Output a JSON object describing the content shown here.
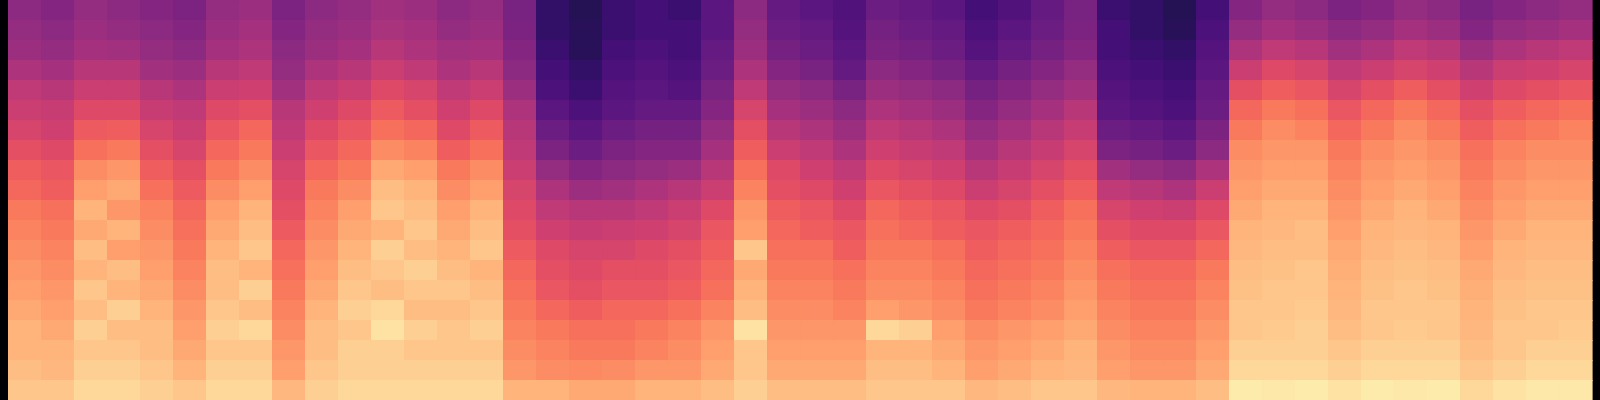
{
  "chart_data": {
    "type": "heatmap",
    "color": "magma",
    "zlim": [
      0,
      100
    ],
    "tick_labels": false,
    "cells": [
      [
        40,
        38,
        42,
        40,
        38,
        36,
        42,
        44,
        36,
        40,
        42,
        45,
        44,
        40,
        42,
        35,
        18,
        15,
        20,
        22,
        20,
        28,
        40,
        30,
        28,
        25,
        32,
        30,
        28,
        22,
        25,
        30,
        35,
        20,
        18,
        15,
        22,
        38,
        42,
        40,
        36,
        38,
        42,
        40,
        35,
        38,
        40,
        42
      ],
      [
        42,
        40,
        44,
        42,
        40,
        38,
        44,
        46,
        38,
        42,
        44,
        47,
        46,
        42,
        44,
        36,
        18,
        16,
        20,
        22,
        22,
        28,
        42,
        32,
        30,
        26,
        34,
        32,
        30,
        24,
        28,
        32,
        36,
        22,
        18,
        16,
        24,
        42,
        46,
        44,
        40,
        42,
        46,
        44,
        38,
        42,
        44,
        46
      ],
      [
        44,
        42,
        46,
        45,
        42,
        40,
        46,
        48,
        40,
        44,
        46,
        50,
        48,
        45,
        46,
        38,
        20,
        16,
        22,
        24,
        22,
        30,
        44,
        34,
        32,
        28,
        36,
        34,
        32,
        26,
        30,
        34,
        38,
        22,
        20,
        18,
        26,
        48,
        52,
        50,
        45,
        48,
        52,
        50,
        44,
        48,
        50,
        52
      ],
      [
        48,
        46,
        50,
        50,
        45,
        44,
        50,
        52,
        42,
        48,
        50,
        55,
        52,
        48,
        50,
        40,
        22,
        18,
        24,
        26,
        24,
        32,
        48,
        38,
        35,
        30,
        40,
        38,
        35,
        30,
        34,
        38,
        42,
        24,
        22,
        20,
        28,
        55,
        60,
        58,
        52,
        55,
        58,
        56,
        50,
        55,
        56,
        58
      ],
      [
        52,
        50,
        55,
        55,
        50,
        48,
        55,
        56,
        45,
        52,
        55,
        60,
        58,
        52,
        55,
        44,
        24,
        20,
        26,
        28,
        26,
        35,
        52,
        42,
        40,
        35,
        44,
        42,
        40,
        34,
        38,
        42,
        45,
        26,
        24,
        22,
        30,
        62,
        66,
        64,
        58,
        62,
        66,
        62,
        56,
        60,
        62,
        64
      ],
      [
        55,
        54,
        60,
        60,
        54,
        52,
        60,
        62,
        50,
        56,
        60,
        65,
        62,
        56,
        60,
        48,
        28,
        24,
        28,
        30,
        30,
        38,
        58,
        46,
        44,
        40,
        48,
        46,
        44,
        38,
        42,
        46,
        50,
        28,
        26,
        24,
        32,
        68,
        72,
        70,
        64,
        68,
        72,
        68,
        62,
        66,
        68,
        70
      ],
      [
        58,
        56,
        65,
        66,
        58,
        55,
        64,
        68,
        52,
        60,
        64,
        70,
        68,
        60,
        65,
        50,
        32,
        28,
        32,
        34,
        34,
        42,
        62,
        50,
        48,
        44,
        52,
        50,
        48,
        42,
        46,
        50,
        54,
        32,
        30,
        28,
        36,
        72,
        76,
        74,
        68,
        72,
        76,
        72,
        66,
        70,
        72,
        74
      ],
      [
        62,
        60,
        70,
        72,
        62,
        58,
        68,
        72,
        55,
        64,
        68,
        76,
        74,
        66,
        70,
        52,
        36,
        32,
        36,
        38,
        38,
        46,
        66,
        55,
        52,
        48,
        56,
        54,
        52,
        46,
        50,
        54,
        58,
        36,
        34,
        32,
        40,
        76,
        78,
        78,
        72,
        76,
        78,
        76,
        70,
        74,
        76,
        76
      ],
      [
        66,
        64,
        76,
        78,
        66,
        62,
        72,
        76,
        58,
        68,
        72,
        82,
        80,
        72,
        76,
        55,
        42,
        38,
        40,
        42,
        44,
        50,
        70,
        60,
        56,
        52,
        60,
        58,
        56,
        50,
        54,
        58,
        62,
        45,
        42,
        40,
        48,
        78,
        80,
        80,
        74,
        78,
        80,
        78,
        72,
        76,
        78,
        78
      ],
      [
        68,
        66,
        80,
        82,
        70,
        65,
        76,
        80,
        60,
        72,
        76,
        86,
        84,
        76,
        80,
        58,
        48,
        44,
        45,
        48,
        50,
        55,
        74,
        62,
        60,
        56,
        64,
        62,
        60,
        55,
        58,
        62,
        66,
        52,
        50,
        48,
        55,
        80,
        82,
        82,
        76,
        80,
        82,
        80,
        74,
        78,
        80,
        80
      ],
      [
        72,
        70,
        84,
        78,
        74,
        68,
        80,
        84,
        62,
        74,
        80,
        88,
        86,
        80,
        84,
        60,
        52,
        50,
        50,
        52,
        55,
        60,
        78,
        66,
        64,
        60,
        68,
        66,
        64,
        60,
        62,
        66,
        70,
        58,
        56,
        55,
        60,
        82,
        84,
        84,
        78,
        82,
        84,
        82,
        76,
        80,
        82,
        82
      ],
      [
        74,
        72,
        82,
        84,
        76,
        70,
        82,
        86,
        65,
        76,
        82,
        84,
        88,
        82,
        86,
        62,
        56,
        54,
        55,
        56,
        58,
        64,
        80,
        68,
        66,
        64,
        70,
        68,
        66,
        64,
        66,
        68,
        72,
        62,
        60,
        60,
        64,
        84,
        85,
        86,
        80,
        84,
        85,
        84,
        78,
        82,
        84,
        84
      ],
      [
        76,
        74,
        86,
        80,
        78,
        72,
        84,
        88,
        68,
        78,
        84,
        90,
        86,
        84,
        88,
        65,
        60,
        58,
        58,
        60,
        62,
        66,
        88,
        70,
        70,
        66,
        72,
        72,
        70,
        66,
        68,
        70,
        74,
        66,
        64,
        64,
        68,
        85,
        86,
        86,
        82,
        85,
        86,
        85,
        80,
        84,
        85,
        85
      ],
      [
        78,
        76,
        84,
        86,
        80,
        74,
        86,
        84,
        70,
        80,
        86,
        88,
        90,
        86,
        84,
        68,
        62,
        60,
        62,
        62,
        64,
        68,
        82,
        72,
        72,
        70,
        74,
        74,
        72,
        68,
        70,
        72,
        76,
        70,
        68,
        68,
        72,
        86,
        87,
        88,
        83,
        86,
        87,
        86,
        82,
        85,
        86,
        86
      ],
      [
        80,
        78,
        88,
        84,
        82,
        76,
        86,
        90,
        72,
        82,
        88,
        86,
        88,
        88,
        86,
        70,
        64,
        62,
        64,
        64,
        66,
        70,
        84,
        74,
        74,
        72,
        76,
        76,
        74,
        70,
        72,
        74,
        78,
        72,
        70,
        70,
        74,
        87,
        88,
        88,
        84,
        87,
        88,
        87,
        83,
        86,
        87,
        87
      ],
      [
        82,
        80,
        86,
        90,
        84,
        78,
        88,
        86,
        74,
        84,
        90,
        92,
        86,
        86,
        88,
        72,
        68,
        66,
        68,
        68,
        70,
        74,
        86,
        76,
        76,
        74,
        80,
        78,
        76,
        72,
        74,
        76,
        80,
        74,
        72,
        72,
        76,
        88,
        88,
        89,
        85,
        88,
        88,
        88,
        84,
        87,
        88,
        88
      ],
      [
        84,
        82,
        90,
        86,
        86,
        80,
        90,
        92,
        76,
        86,
        88,
        94,
        90,
        88,
        90,
        74,
        72,
        70,
        70,
        72,
        74,
        78,
        94,
        78,
        78,
        78,
        92,
        90,
        80,
        76,
        78,
        80,
        82,
        76,
        74,
        74,
        78,
        88,
        89,
        90,
        86,
        88,
        89,
        88,
        85,
        88,
        88,
        89
      ],
      [
        84,
        84,
        88,
        88,
        86,
        82,
        88,
        88,
        78,
        86,
        90,
        90,
        88,
        88,
        88,
        76,
        74,
        72,
        72,
        74,
        76,
        80,
        88,
        80,
        80,
        80,
        84,
        84,
        82,
        78,
        80,
        82,
        84,
        78,
        76,
        76,
        80,
        90,
        90,
        90,
        88,
        90,
        90,
        90,
        86,
        88,
        90,
        90
      ],
      [
        86,
        85,
        90,
        90,
        88,
        84,
        90,
        90,
        80,
        88,
        90,
        90,
        90,
        90,
        90,
        78,
        76,
        75,
        76,
        78,
        78,
        82,
        88,
        82,
        82,
        82,
        86,
        86,
        84,
        80,
        82,
        84,
        85,
        80,
        78,
        78,
        82,
        92,
        92,
        92,
        90,
        92,
        92,
        92,
        88,
        90,
        92,
        92
      ],
      [
        88,
        88,
        92,
        92,
        90,
        88,
        92,
        92,
        85,
        90,
        92,
        92,
        92,
        92,
        92,
        84,
        84,
        82,
        82,
        84,
        84,
        86,
        90,
        86,
        86,
        86,
        88,
        88,
        88,
        85,
        86,
        88,
        88,
        85,
        84,
        84,
        86,
        96,
        95,
        96,
        94,
        96,
        95,
        96,
        92,
        94,
        95,
        95
      ]
    ]
  }
}
